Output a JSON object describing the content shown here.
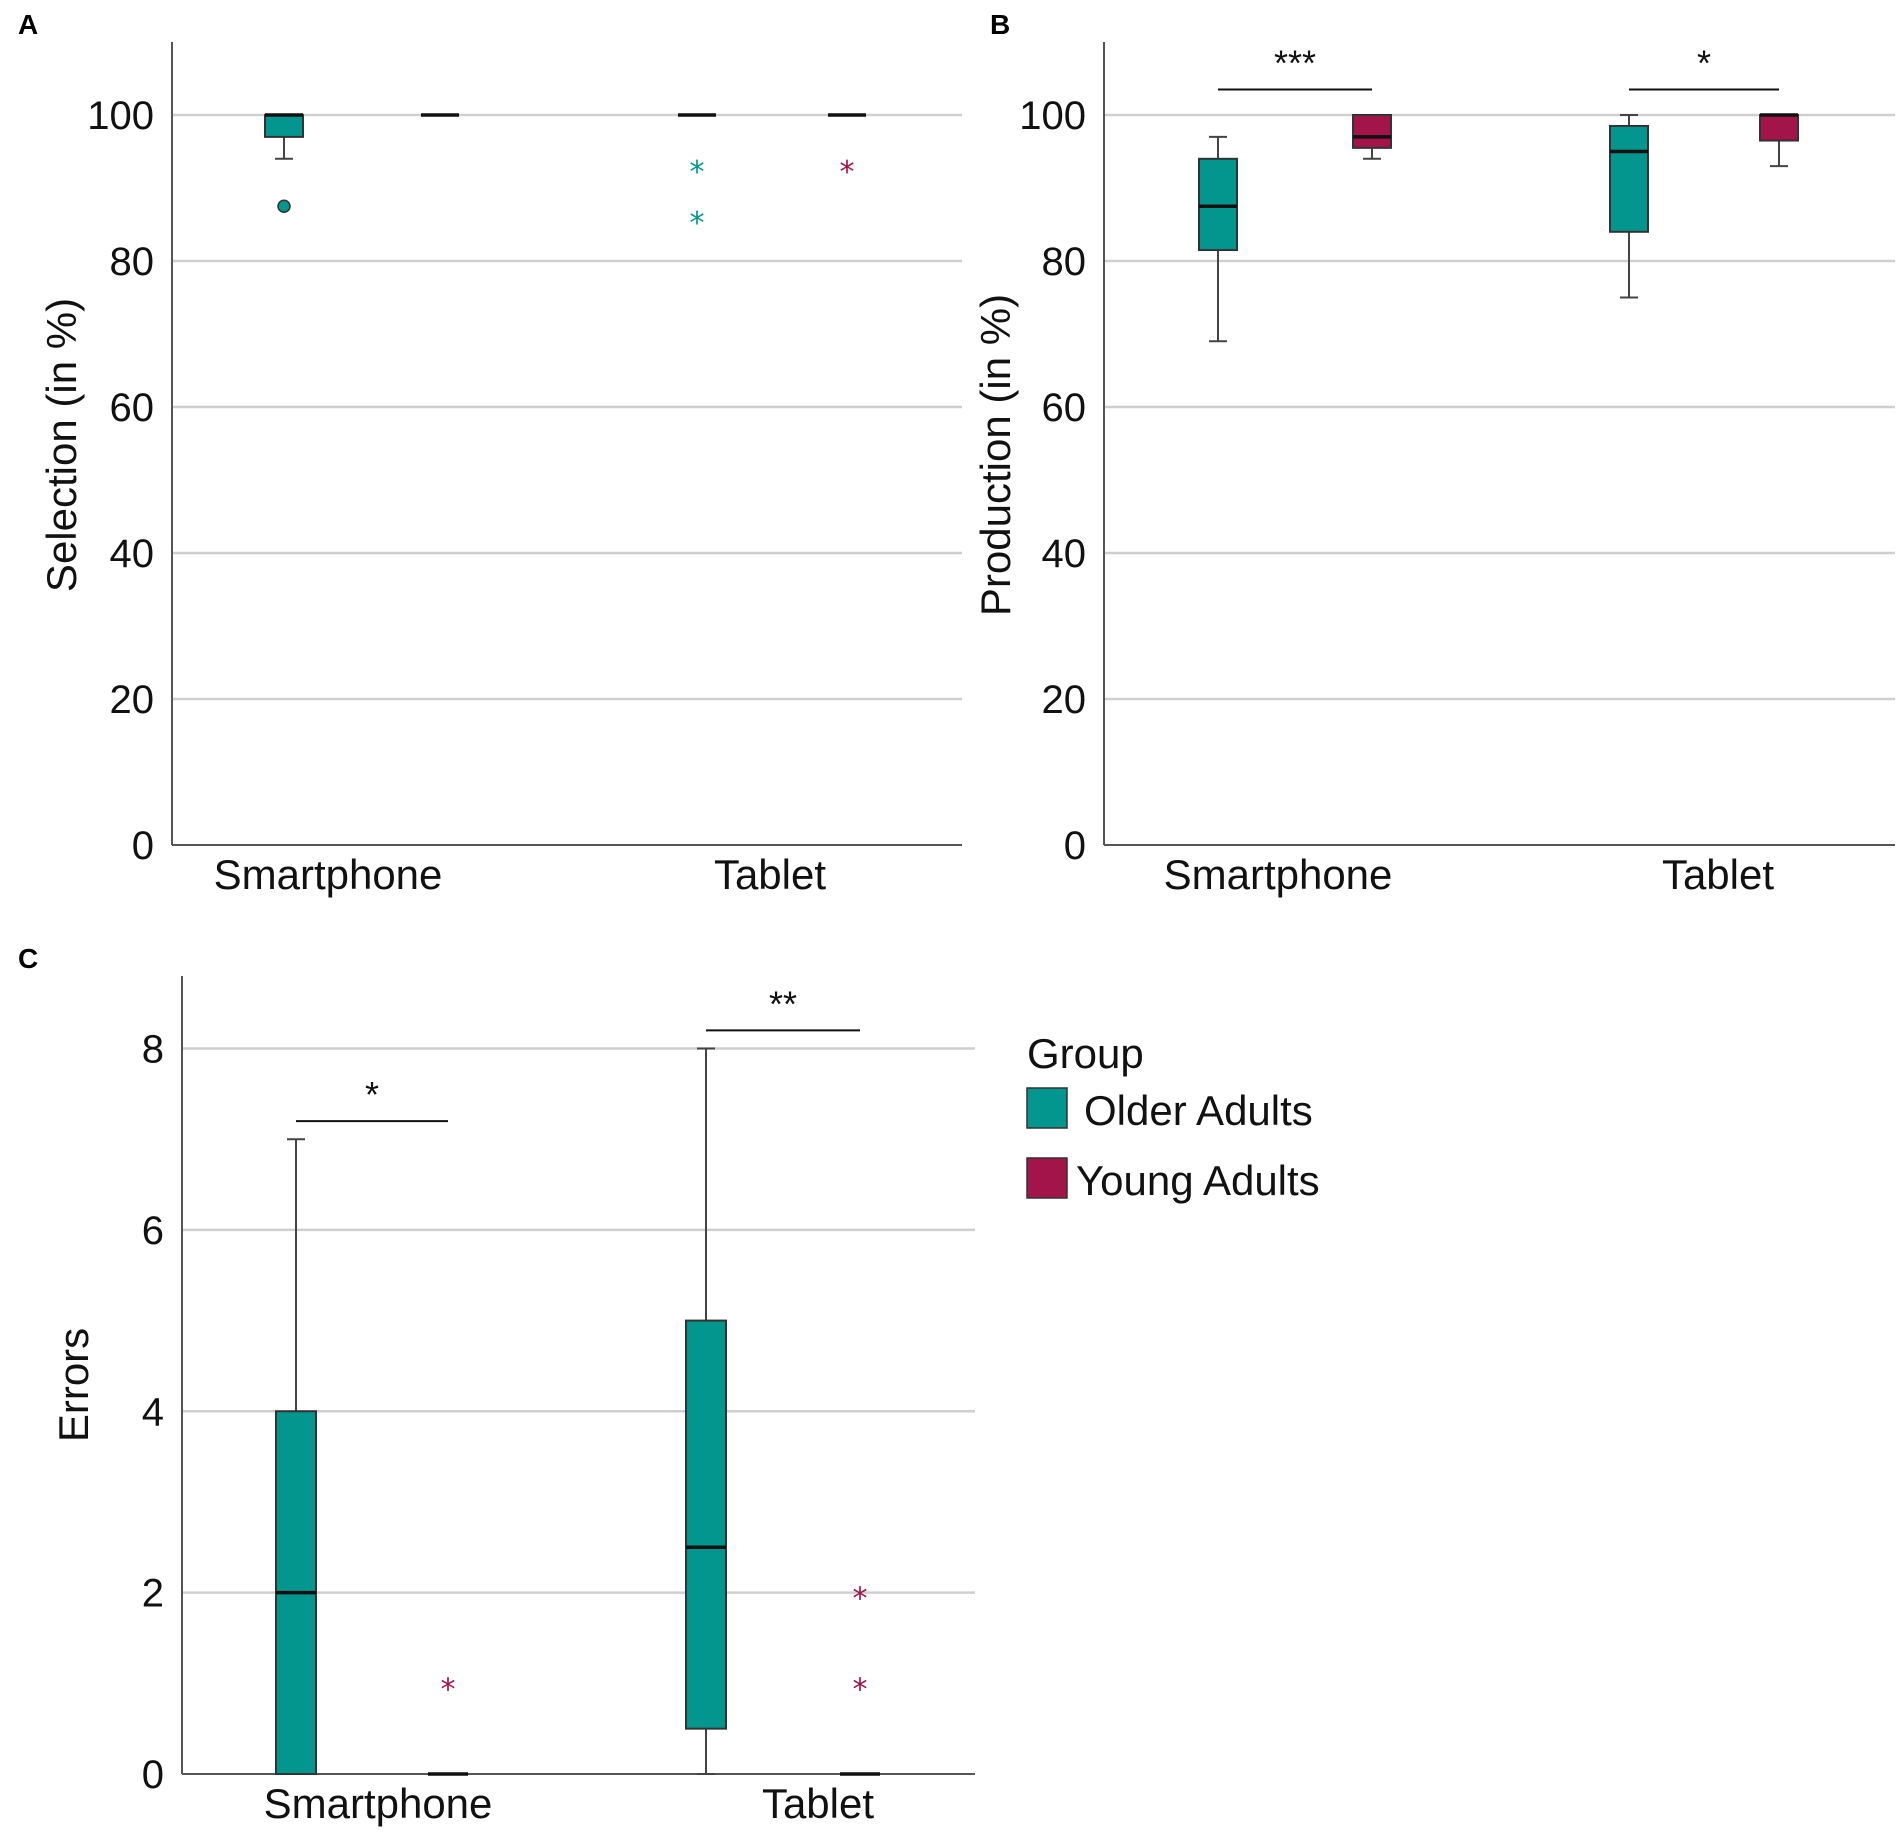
{
  "colors": {
    "older": "#02968f",
    "young": "#a3144b",
    "grid": "#cfcfcf",
    "axis": "#555555",
    "median": "#111111"
  },
  "legend": {
    "title": "Group",
    "items": [
      {
        "label": "Older Adults",
        "color": "#02968f"
      },
      {
        "label": "Young Adults",
        "color": "#a3144b"
      }
    ]
  },
  "chart_data": [
    {
      "panel": "A",
      "type": "box",
      "ylabel": "Selection (in %)",
      "ylim": [
        0,
        110
      ],
      "yticks": [
        0,
        20,
        40,
        60,
        80,
        100
      ],
      "categories": [
        "Smartphone",
        "Tablet"
      ],
      "boxes": [
        {
          "category": "Smartphone",
          "group": "Older Adults",
          "min": 94,
          "q1": 97,
          "median": 100,
          "q3": 100,
          "max": 100,
          "outliers": [
            87.5
          ],
          "extremes": []
        },
        {
          "category": "Smartphone",
          "group": "Young Adults",
          "min": 100,
          "q1": 100,
          "median": 100,
          "q3": 100,
          "max": 100,
          "outliers": [],
          "extremes": []
        },
        {
          "category": "Tablet",
          "group": "Older Adults",
          "min": 100,
          "q1": 100,
          "median": 100,
          "q3": 100,
          "max": 100,
          "outliers": [],
          "extremes": [
            93,
            86
          ]
        },
        {
          "category": "Tablet",
          "group": "Young Adults",
          "min": 100,
          "q1": 100,
          "median": 100,
          "q3": 100,
          "max": 100,
          "outliers": [],
          "extremes": [
            93
          ]
        }
      ],
      "significance": []
    },
    {
      "panel": "B",
      "type": "box",
      "ylabel": "Production (in %)",
      "ylim": [
        0,
        110
      ],
      "yticks": [
        0,
        20,
        40,
        60,
        80,
        100
      ],
      "categories": [
        "Smartphone",
        "Tablet"
      ],
      "boxes": [
        {
          "category": "Smartphone",
          "group": "Older Adults",
          "min": 69,
          "q1": 81.5,
          "median": 87.5,
          "q3": 94,
          "max": 97,
          "outliers": [],
          "extremes": []
        },
        {
          "category": "Smartphone",
          "group": "Young Adults",
          "min": 94,
          "q1": 95.5,
          "median": 97,
          "q3": 100,
          "max": 100,
          "outliers": [],
          "extremes": []
        },
        {
          "category": "Tablet",
          "group": "Older Adults",
          "min": 75,
          "q1": 84,
          "median": 95,
          "q3": 98.5,
          "max": 100,
          "outliers": [],
          "extremes": []
        },
        {
          "category": "Tablet",
          "group": "Young Adults",
          "min": 93,
          "q1": 96.5,
          "median": 100,
          "q3": 100,
          "max": 100,
          "outliers": [],
          "extremes": []
        }
      ],
      "significance": [
        {
          "category": "Smartphone",
          "y": 103.5,
          "label": "***"
        },
        {
          "category": "Tablet",
          "y": 103.5,
          "label": "*"
        }
      ]
    },
    {
      "panel": "C",
      "type": "box",
      "ylabel": "Errors",
      "ylim": [
        0,
        8.8
      ],
      "yticks": [
        0,
        2,
        4,
        6,
        8
      ],
      "categories": [
        "Smartphone",
        "Tablet"
      ],
      "boxes": [
        {
          "category": "Smartphone",
          "group": "Older Adults",
          "min": 0,
          "q1": 0,
          "median": 2,
          "q3": 4,
          "max": 7,
          "outliers": [],
          "extremes": []
        },
        {
          "category": "Smartphone",
          "group": "Young Adults",
          "min": 0,
          "q1": 0,
          "median": 0,
          "q3": 0,
          "max": 0,
          "outliers": [],
          "extremes": [
            1
          ]
        },
        {
          "category": "Tablet",
          "group": "Older Adults",
          "min": 0,
          "q1": 0.5,
          "median": 2.5,
          "q3": 5,
          "max": 8,
          "outliers": [],
          "extremes": []
        },
        {
          "category": "Tablet",
          "group": "Young Adults",
          "min": 0,
          "q1": 0,
          "median": 0,
          "q3": 0,
          "max": 0,
          "outliers": [],
          "extremes": [
            2,
            1
          ]
        }
      ],
      "significance": [
        {
          "category": "Smartphone",
          "y": 7.2,
          "label": "*"
        },
        {
          "category": "Tablet",
          "y": 8.2,
          "label": "**"
        }
      ]
    }
  ]
}
